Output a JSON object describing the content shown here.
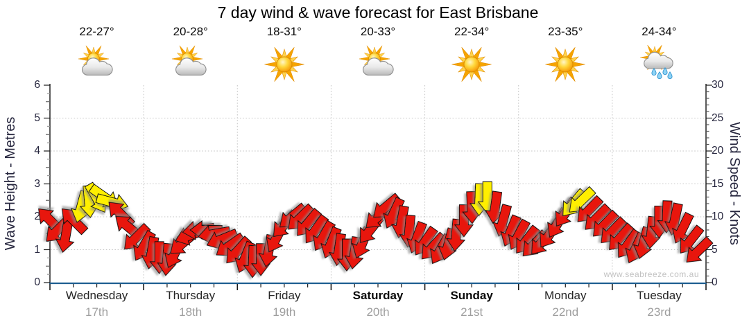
{
  "title": "7 day wind & wave forecast for East Brisbane",
  "watermark": "www.seabreeze.com.au",
  "colors": {
    "arrow_red": "#e8130b",
    "arrow_yellow": "#ffef00",
    "arrow_outline": "#111111",
    "axis_text": "#26263e",
    "grid": "#c4c4c4",
    "axis_line": "#222222",
    "x_axis_line": "#1d5e90",
    "day_name": "#262626",
    "day_date": "#9e9e9e",
    "watermark": "#c2c2c2",
    "sun": "#ffc200",
    "cloud": "#d9d9d9",
    "rain_drop": "#8ed3f5"
  },
  "chart_data": {
    "type": "scatter",
    "subtype": "wind-direction-arrow-series",
    "title": "7 day wind & wave forecast for East Brisbane",
    "days": [
      {
        "name": "Wednesday",
        "date": "17th",
        "temp_range": "22-27°",
        "icon": "sun-cloud",
        "weekend": false
      },
      {
        "name": "Thursday",
        "date": "18th",
        "temp_range": "20-28°",
        "icon": "sun-cloud",
        "weekend": false
      },
      {
        "name": "Friday",
        "date": "19th",
        "temp_range": "18-31°",
        "icon": "sunny",
        "weekend": false
      },
      {
        "name": "Saturday",
        "date": "20th",
        "temp_range": "20-33°",
        "icon": "sun-cloud",
        "weekend": true
      },
      {
        "name": "Sunday",
        "date": "21st",
        "temp_range": "22-34°",
        "icon": "sunny",
        "weekend": true
      },
      {
        "name": "Monday",
        "date": "22nd",
        "temp_range": "23-35°",
        "icon": "sunny",
        "weekend": false
      },
      {
        "name": "Tuesday",
        "date": "23rd",
        "temp_range": "24-34°",
        "icon": "sun-cloud-rain",
        "weekend": false
      }
    ],
    "left_axis": {
      "label": "Wave Height - Metres",
      "min": 0,
      "max": 6,
      "major_tick_step": 1,
      "tick_labels": [
        "0",
        "1",
        "2",
        "3",
        "4",
        "5",
        "6"
      ]
    },
    "right_axis": {
      "label": "Wind Speed - Knots",
      "min": 0,
      "max": 30,
      "major_tick_step": 5,
      "tick_labels": [
        "0",
        "5",
        "10",
        "15",
        "20",
        "25",
        "30"
      ]
    },
    "grid": "dotted horizontal lines at 1-5 m (5-25 kn); dotted vertical lines at day boundaries",
    "legend": "none",
    "sample_interval_hours": 2,
    "arrow_colors": {
      "r": "#e8130b",
      "y": "#ffef00"
    },
    "dir_convention": "dir = screen angle in degrees, 0 = arrow points right (east), 90 = down (south), 135 = down-left, 225 = up-left; y-value = wind speed in knots on right axis (wave-height axis shares grid, 1 m = 5 kn)",
    "points": [
      [
        0,
        9.5,
        225,
        "r"
      ],
      [
        2,
        8,
        135,
        "r"
      ],
      [
        4,
        7,
        100,
        "r"
      ],
      [
        6,
        9.5,
        225,
        "r"
      ],
      [
        8,
        11.5,
        105,
        "y"
      ],
      [
        10,
        12.3,
        85,
        "y"
      ],
      [
        12,
        12.8,
        60,
        "y"
      ],
      [
        14,
        13,
        35,
        "y"
      ],
      [
        16,
        12.2,
        15,
        "y"
      ],
      [
        18,
        10.5,
        225,
        "r"
      ],
      [
        20,
        8.5,
        220,
        "r"
      ],
      [
        22,
        6.8,
        135,
        "r"
      ],
      [
        24,
        5.5,
        120,
        "r"
      ],
      [
        26,
        4.5,
        100,
        "r"
      ],
      [
        28,
        3.8,
        90,
        "r"
      ],
      [
        30,
        3.5,
        95,
        "r"
      ],
      [
        32,
        4.5,
        115,
        "r"
      ],
      [
        34,
        6,
        140,
        "r"
      ],
      [
        36,
        7.2,
        160,
        "r"
      ],
      [
        38,
        8,
        172,
        "r"
      ],
      [
        40,
        8,
        180,
        "r"
      ],
      [
        42,
        7.4,
        170,
        "r"
      ],
      [
        44,
        6.6,
        158,
        "r"
      ],
      [
        46,
        5.6,
        145,
        "r"
      ],
      [
        48,
        4.8,
        132,
        "r"
      ],
      [
        50,
        3.8,
        112,
        "r"
      ],
      [
        52,
        3.2,
        92,
        "r"
      ],
      [
        54,
        3.5,
        90,
        "r"
      ],
      [
        56,
        4.8,
        100,
        "r"
      ],
      [
        58,
        6.8,
        118,
        "r"
      ],
      [
        60,
        8.8,
        132,
        "r"
      ],
      [
        62,
        10,
        140,
        "r"
      ],
      [
        64,
        9.8,
        136,
        "r"
      ],
      [
        66,
        9,
        130,
        "r"
      ],
      [
        68,
        8,
        126,
        "r"
      ],
      [
        70,
        7,
        120,
        "r"
      ],
      [
        72,
        6,
        112,
        "r"
      ],
      [
        74,
        5,
        98,
        "r"
      ],
      [
        76,
        4.2,
        90,
        "r"
      ],
      [
        78,
        4.5,
        98,
        "r"
      ],
      [
        80,
        6,
        112,
        "r"
      ],
      [
        82,
        8,
        128,
        "r"
      ],
      [
        84,
        10,
        138,
        "r"
      ],
      [
        86,
        11.5,
        140,
        "r"
      ],
      [
        88,
        10.5,
        115,
        "r"
      ],
      [
        90,
        9.2,
        100,
        "r"
      ],
      [
        92,
        7.8,
        95,
        "r"
      ],
      [
        94,
        6.8,
        110,
        "r"
      ],
      [
        96,
        6.2,
        125,
        "r"
      ],
      [
        98,
        5.4,
        132,
        "r"
      ],
      [
        100,
        5,
        120,
        "r"
      ],
      [
        102,
        5.8,
        105,
        "r"
      ],
      [
        104,
        7.2,
        95,
        "r"
      ],
      [
        106,
        9.4,
        90,
        "r"
      ],
      [
        108,
        11.4,
        88,
        "r"
      ],
      [
        110,
        12.6,
        92,
        "y"
      ],
      [
        112,
        12.9,
        90,
        "y"
      ],
      [
        114,
        11.4,
        98,
        "r"
      ],
      [
        116,
        9.4,
        105,
        "r"
      ],
      [
        118,
        7.8,
        112,
        "r"
      ],
      [
        120,
        7.2,
        118,
        "r"
      ],
      [
        122,
        6.4,
        128,
        "r"
      ],
      [
        124,
        5.8,
        134,
        "r"
      ],
      [
        126,
        6.2,
        130,
        "r"
      ],
      [
        128,
        7.4,
        124,
        "r"
      ],
      [
        130,
        9,
        120,
        "r"
      ],
      [
        132,
        10.6,
        124,
        "r"
      ],
      [
        134,
        12,
        130,
        "y"
      ],
      [
        136,
        12.4,
        136,
        "y"
      ],
      [
        138,
        11,
        134,
        "r"
      ],
      [
        140,
        9.8,
        135,
        "r"
      ],
      [
        142,
        8.8,
        134,
        "r"
      ],
      [
        144,
        7.8,
        134,
        "r"
      ],
      [
        146,
        6.8,
        132,
        "r"
      ],
      [
        148,
        5.8,
        126,
        "r"
      ],
      [
        150,
        5.2,
        115,
        "r"
      ],
      [
        152,
        6,
        105,
        "r"
      ],
      [
        154,
        7.6,
        96,
        "r"
      ],
      [
        156,
        9.2,
        90,
        "r"
      ],
      [
        158,
        10,
        92,
        "r"
      ],
      [
        160,
        9.6,
        102,
        "r"
      ],
      [
        162,
        8.2,
        116,
        "r"
      ],
      [
        164,
        6.4,
        128,
        "r"
      ],
      [
        166,
        4.8,
        136,
        "r"
      ]
    ]
  }
}
